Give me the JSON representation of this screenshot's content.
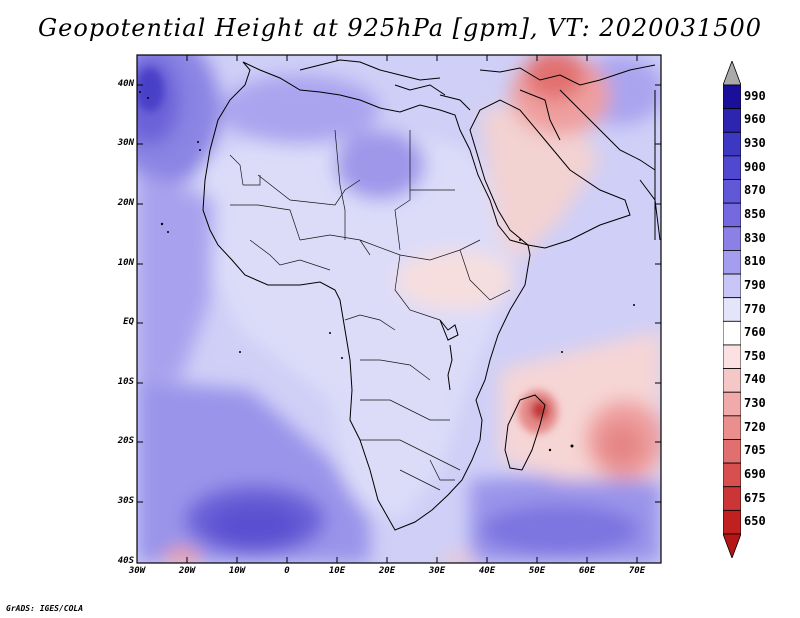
{
  "title": "Geopotential Height at 925hPa [gpm], VT: 2020031500",
  "credit": "GrADS: IGES/COLA",
  "lat_labels": [
    "40N",
    "30N",
    "20N",
    "10N",
    "EQ",
    "10S",
    "20S",
    "30S",
    "40S"
  ],
  "lon_labels": [
    "30W",
    "20W",
    "10W",
    "0",
    "10E",
    "20E",
    "30E",
    "40E",
    "50E",
    "60E",
    "70E"
  ],
  "colorbar": {
    "levels": [
      "990",
      "960",
      "930",
      "900",
      "870",
      "850",
      "830",
      "810",
      "790",
      "770",
      "760",
      "750",
      "740",
      "730",
      "720",
      "705",
      "690",
      "675",
      "650"
    ],
    "colors_top_to_bottom": [
      "#1a0f9a",
      "#2d25b0",
      "#3d38c2",
      "#5048d0",
      "#6158d8",
      "#7569e0",
      "#8c80e6",
      "#a59df0",
      "#c8c5f7",
      "#e4e4fb",
      "#ffffff",
      "#fbe1e1",
      "#f6c7c7",
      "#f0aaaa",
      "#ea8e8e",
      "#e26f6f",
      "#d84f4f",
      "#cc3535",
      "#c02020"
    ],
    "top_arrow_color": "#aaaaaa",
    "bottom_arrow_color": "#b51515"
  }
}
